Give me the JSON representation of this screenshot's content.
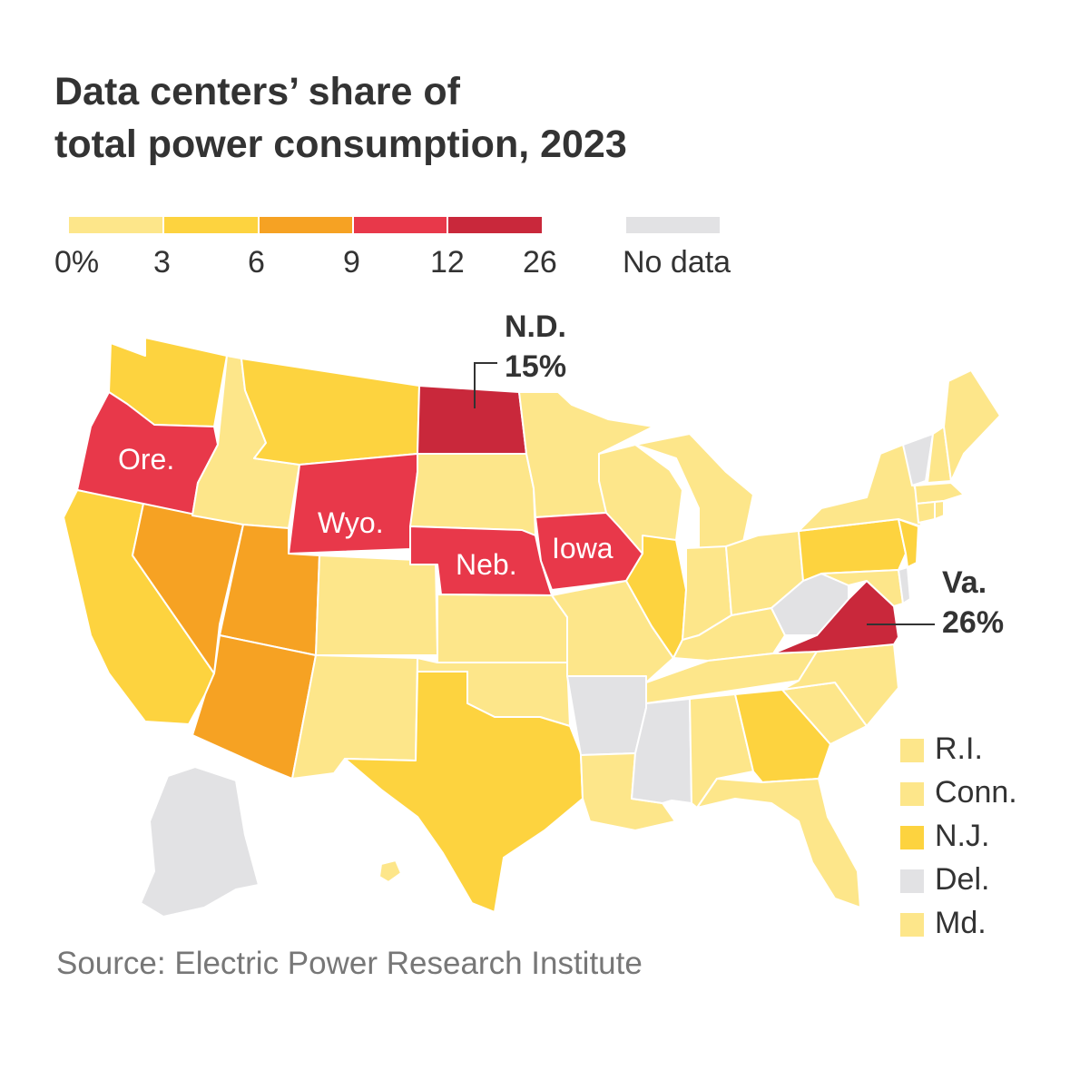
{
  "title": {
    "line1": "Data centers’ share of",
    "line2": "total power consumption, 2023"
  },
  "legend": {
    "bins": [
      {
        "from": "0%",
        "to": "3",
        "color": "#fde68a"
      },
      {
        "from": "3",
        "to": "6",
        "color": "#fdd33f"
      },
      {
        "from": "6",
        "to": "9",
        "color": "#f6a223"
      },
      {
        "from": "9",
        "to": "12",
        "color": "#e8384a"
      },
      {
        "from": "12",
        "to": "26",
        "color": "#c9283b"
      }
    ],
    "ticks": [
      "0%",
      "3",
      "6",
      "9",
      "12",
      "26"
    ],
    "no_data": {
      "label": "No data",
      "color": "#e2e2e4"
    }
  },
  "colors": {
    "bin1": "#fde68a",
    "bin2": "#fdd33f",
    "bin3": "#f6a223",
    "bin4": "#e8384a",
    "bin5": "#c9283b",
    "nodata": "#e2e2e4",
    "border": "#ffffff"
  },
  "callouts": {
    "nd": {
      "name": "N.D.",
      "value": "15%"
    },
    "va": {
      "name": "Va.",
      "value": "26%"
    }
  },
  "state_labels": {
    "ore": "Ore.",
    "wyo": "Wyo.",
    "neb": "Neb.",
    "iowa": "Iowa"
  },
  "small_states": [
    {
      "label": "R.I.",
      "color": "#fde68a"
    },
    {
      "label": "Conn.",
      "color": "#fde68a"
    },
    {
      "label": "N.J.",
      "color": "#fdd33f"
    },
    {
      "label": "Del.",
      "color": "#e2e2e4"
    },
    {
      "label": "Md.",
      "color": "#fde68a"
    }
  ],
  "source": "Source: Electric Power Research Institute"
}
